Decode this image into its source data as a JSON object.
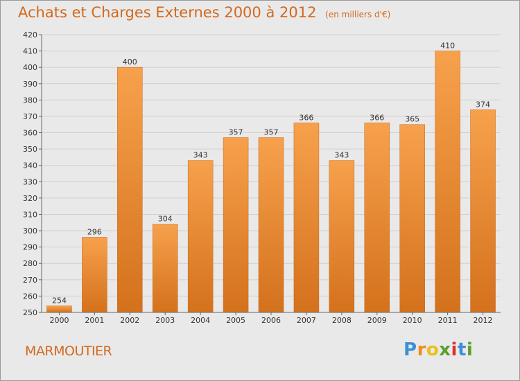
{
  "title": "Achats et Charges Externes 2000 à 2012",
  "subtitle": "(en milliers d'€)",
  "commune": "MARMOUTIER",
  "logo": {
    "letters": [
      "P",
      "r",
      "o",
      "x",
      "i",
      "t",
      "i"
    ],
    "colors": [
      "#3a8fd8",
      "#f08c1a",
      "#e8c21a",
      "#5aa02c",
      "#d9342a",
      "#3a8fd8",
      "#5aa02c"
    ]
  },
  "colors": {
    "bar_top": "#f7a14c",
    "bar_bottom": "#d4711c",
    "accent": "#d2691e"
  },
  "chart_data": {
    "type": "bar",
    "title": "Achats et Charges Externes 2000 à 2012",
    "subtitle": "(en milliers d'€)",
    "categories": [
      "2000",
      "2001",
      "2002",
      "2003",
      "2004",
      "2005",
      "2006",
      "2007",
      "2008",
      "2009",
      "2010",
      "2011",
      "2012"
    ],
    "values": [
      254,
      296,
      400,
      304,
      343,
      357,
      357,
      366,
      343,
      366,
      365,
      410,
      374
    ],
    "ylim": [
      250,
      420
    ],
    "yticks": [
      250,
      260,
      270,
      280,
      290,
      300,
      310,
      320,
      330,
      340,
      350,
      360,
      370,
      380,
      390,
      400,
      410,
      420
    ],
    "grid": true,
    "xlabel": "",
    "ylabel": ""
  }
}
